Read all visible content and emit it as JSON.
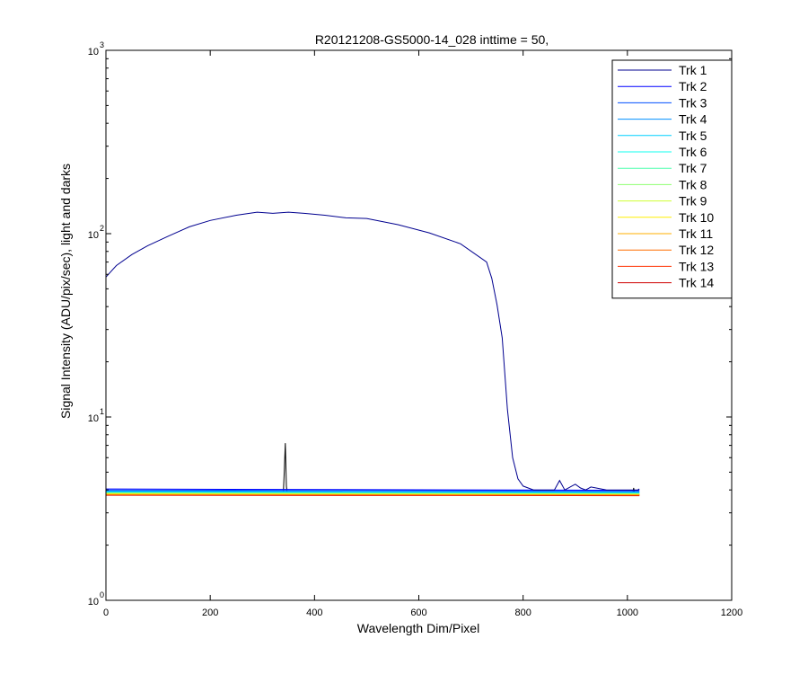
{
  "chart_data": {
    "type": "line",
    "title": "R20121208-GS5000-14_028 inttime = 50,",
    "xlabel": "Wavelength Dim/Pixel",
    "ylabel": "Signal Intensity (ADU/pix/sec), light and darks",
    "xlim": [
      0,
      1200
    ],
    "ylim": [
      1,
      1000
    ],
    "yscale": "log",
    "xticks": [
      0,
      200,
      400,
      600,
      800,
      1000,
      1200
    ],
    "xtick_labels": [
      "0",
      "200",
      "400",
      "600",
      "800",
      "1000",
      "1200"
    ],
    "ytick_labels": [
      {
        "base": "10",
        "exp": "0"
      },
      {
        "base": "10",
        "exp": "1"
      },
      {
        "base": "10",
        "exp": "2"
      },
      {
        "base": "10",
        "exp": "3"
      }
    ],
    "grid": false,
    "legend_position": "top-right",
    "series": [
      {
        "name": "Trk 1",
        "color": "#00008f",
        "x": [
          0,
          20,
          50,
          80,
          120,
          160,
          200,
          250,
          290,
          320,
          350,
          380,
          420,
          460,
          500,
          560,
          620,
          680,
          730,
          740,
          750,
          760,
          770,
          780,
          790,
          800,
          820,
          860,
          870,
          880,
          900,
          910,
          920,
          930,
          940,
          960,
          980,
          1000,
          1020,
          1023
        ],
        "y": [
          58,
          67,
          77,
          86,
          97,
          109,
          118,
          126,
          131,
          129,
          131,
          129,
          126,
          122,
          121,
          112,
          101,
          88,
          70,
          57,
          41,
          27,
          11,
          6,
          4.6,
          4.2,
          4.0,
          4.0,
          4.5,
          4.0,
          4.3,
          4.1,
          4.0,
          4.15,
          4.1,
          4.0,
          4.0,
          4.0,
          4.0,
          4.05
        ]
      },
      {
        "name": "Trk 2",
        "color": "#0000ff",
        "x": [
          0,
          1023
        ],
        "y": [
          4.05,
          3.98
        ]
      },
      {
        "name": "Trk 3",
        "color": "#004fff",
        "x": [
          0,
          1023
        ],
        "y": [
          4.0,
          3.95
        ]
      },
      {
        "name": "Trk 4",
        "color": "#008fff",
        "x": [
          0,
          1023
        ],
        "y": [
          3.95,
          3.9
        ]
      },
      {
        "name": "Trk 5",
        "color": "#00cfff",
        "x": [
          0,
          1023
        ],
        "y": [
          3.92,
          3.88
        ]
      },
      {
        "name": "Trk 6",
        "color": "#10ffef",
        "x": [
          0,
          1023
        ],
        "y": [
          3.9,
          3.86
        ]
      },
      {
        "name": "Trk 7",
        "color": "#50ffaf",
        "x": [
          0,
          1023
        ],
        "y": [
          3.88,
          3.85
        ]
      },
      {
        "name": "Trk 8",
        "color": "#8fff70",
        "x": [
          0,
          1023
        ],
        "y": [
          3.86,
          3.83
        ]
      },
      {
        "name": "Trk 9",
        "color": "#cfff30",
        "x": [
          0,
          1023
        ],
        "y": [
          3.84,
          3.81
        ]
      },
      {
        "name": "Trk 10",
        "color": "#ffef00",
        "x": [
          0,
          1023
        ],
        "y": [
          3.82,
          3.8
        ]
      },
      {
        "name": "Trk 11",
        "color": "#ffaf00",
        "x": [
          0,
          1023
        ],
        "y": [
          3.8,
          3.78
        ]
      },
      {
        "name": "Trk 12",
        "color": "#ff6f00",
        "x": [
          0,
          1023
        ],
        "y": [
          3.78,
          3.76
        ]
      },
      {
        "name": "Trk 13",
        "color": "#ff3000",
        "x": [
          0,
          1023
        ],
        "y": [
          3.76,
          3.74
        ]
      },
      {
        "name": "Trk 14",
        "color": "#cf0000",
        "x": [
          0,
          1023
        ],
        "y": [
          3.74,
          3.72
        ]
      },
      {
        "color": "#000000",
        "x": [
          0,
          340,
          342,
          344,
          346,
          348,
          1010,
          1012,
          1014,
          1023
        ],
        "y": [
          3.75,
          3.75,
          5.0,
          7.2,
          4.2,
          3.75,
          3.75,
          4.1,
          3.8,
          3.75
        ]
      }
    ]
  }
}
